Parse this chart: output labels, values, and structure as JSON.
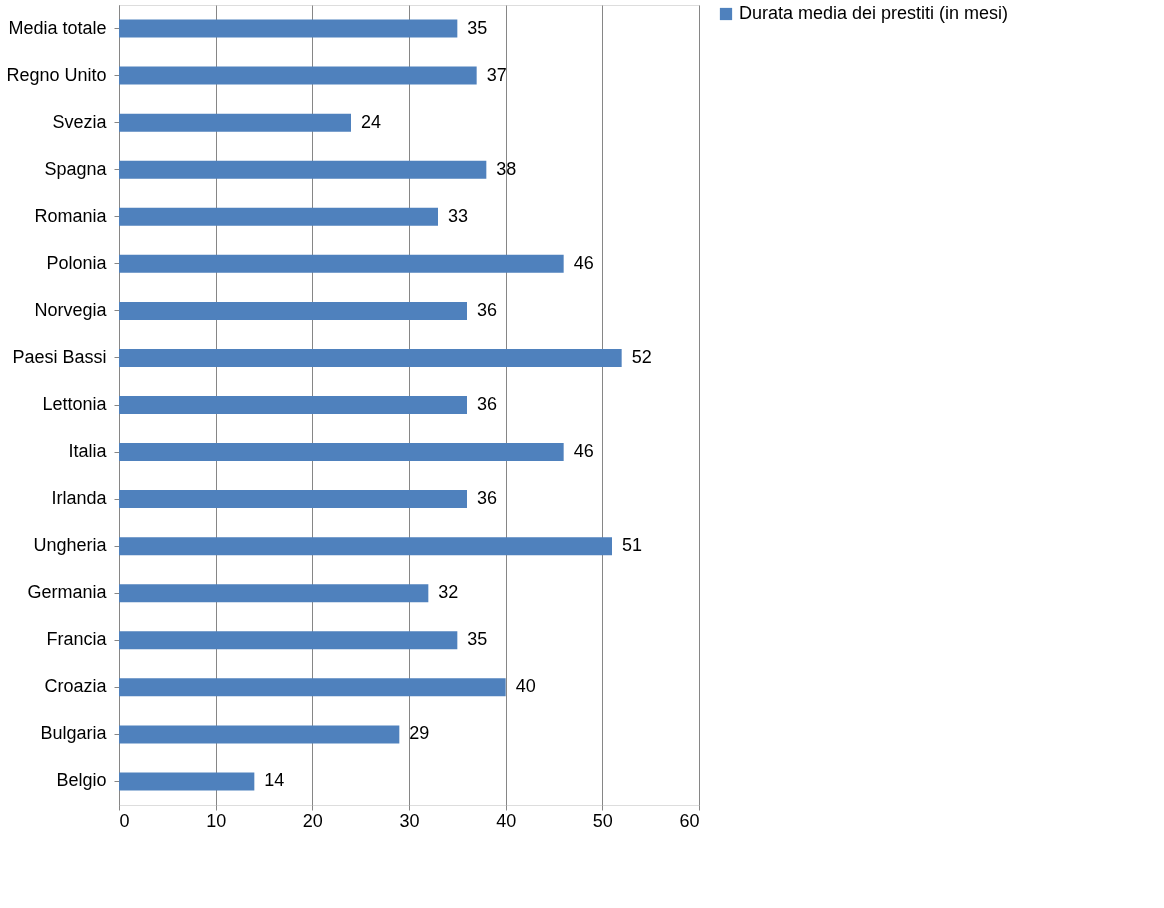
{
  "chart_data": {
    "type": "bar",
    "orientation": "horizontal",
    "categories": [
      "Media totale",
      "Regno Unito",
      "Svezia",
      "Spagna",
      "Romania",
      "Polonia",
      "Norvegia",
      "Paesi Bassi",
      "Lettonia",
      "Italia",
      "Irlanda",
      "Ungheria",
      "Germania",
      "Francia",
      "Croazia",
      "Bulgaria",
      "Belgio"
    ],
    "series": [
      {
        "name": "Durata media dei prestiti (in mesi)",
        "color": "#4f81bd",
        "values": [
          35,
          37,
          24,
          38,
          33,
          46,
          36,
          52,
          36,
          46,
          36,
          51,
          32,
          35,
          40,
          29,
          14
        ]
      }
    ],
    "xlim": [
      0,
      60
    ],
    "xticks": [
      0,
      10,
      20,
      30,
      40,
      50,
      60
    ],
    "grid": "x",
    "legend": "right",
    "data_labels": true
  }
}
